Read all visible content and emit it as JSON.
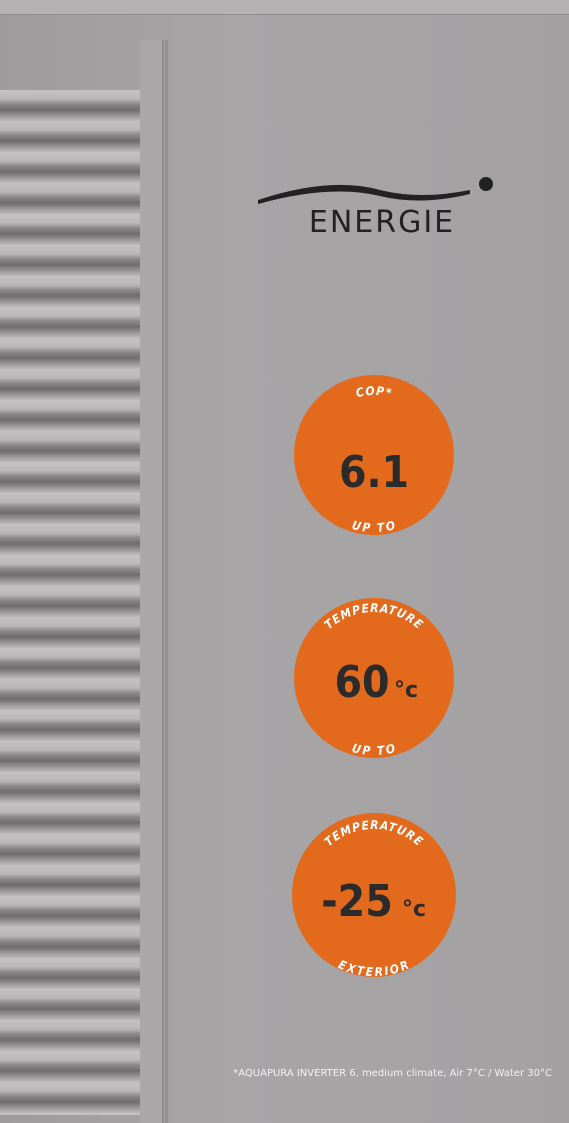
{
  "logo": {
    "text": "ENERGIE"
  },
  "badges": [
    {
      "top": "COP*",
      "value": "6.1",
      "bottom": "UP TO"
    },
    {
      "top": "TEMPERATURE",
      "value": "60",
      "unit": "°c",
      "bottom": "UP TO"
    },
    {
      "top": "TEMPERATURE",
      "value": "-25",
      "unit": "°c",
      "bottom": "EXTERIOR"
    }
  ],
  "footnote": "*AQUAPURA INVERTER 6, medium climate, Air 7°C / Water 30°C"
}
